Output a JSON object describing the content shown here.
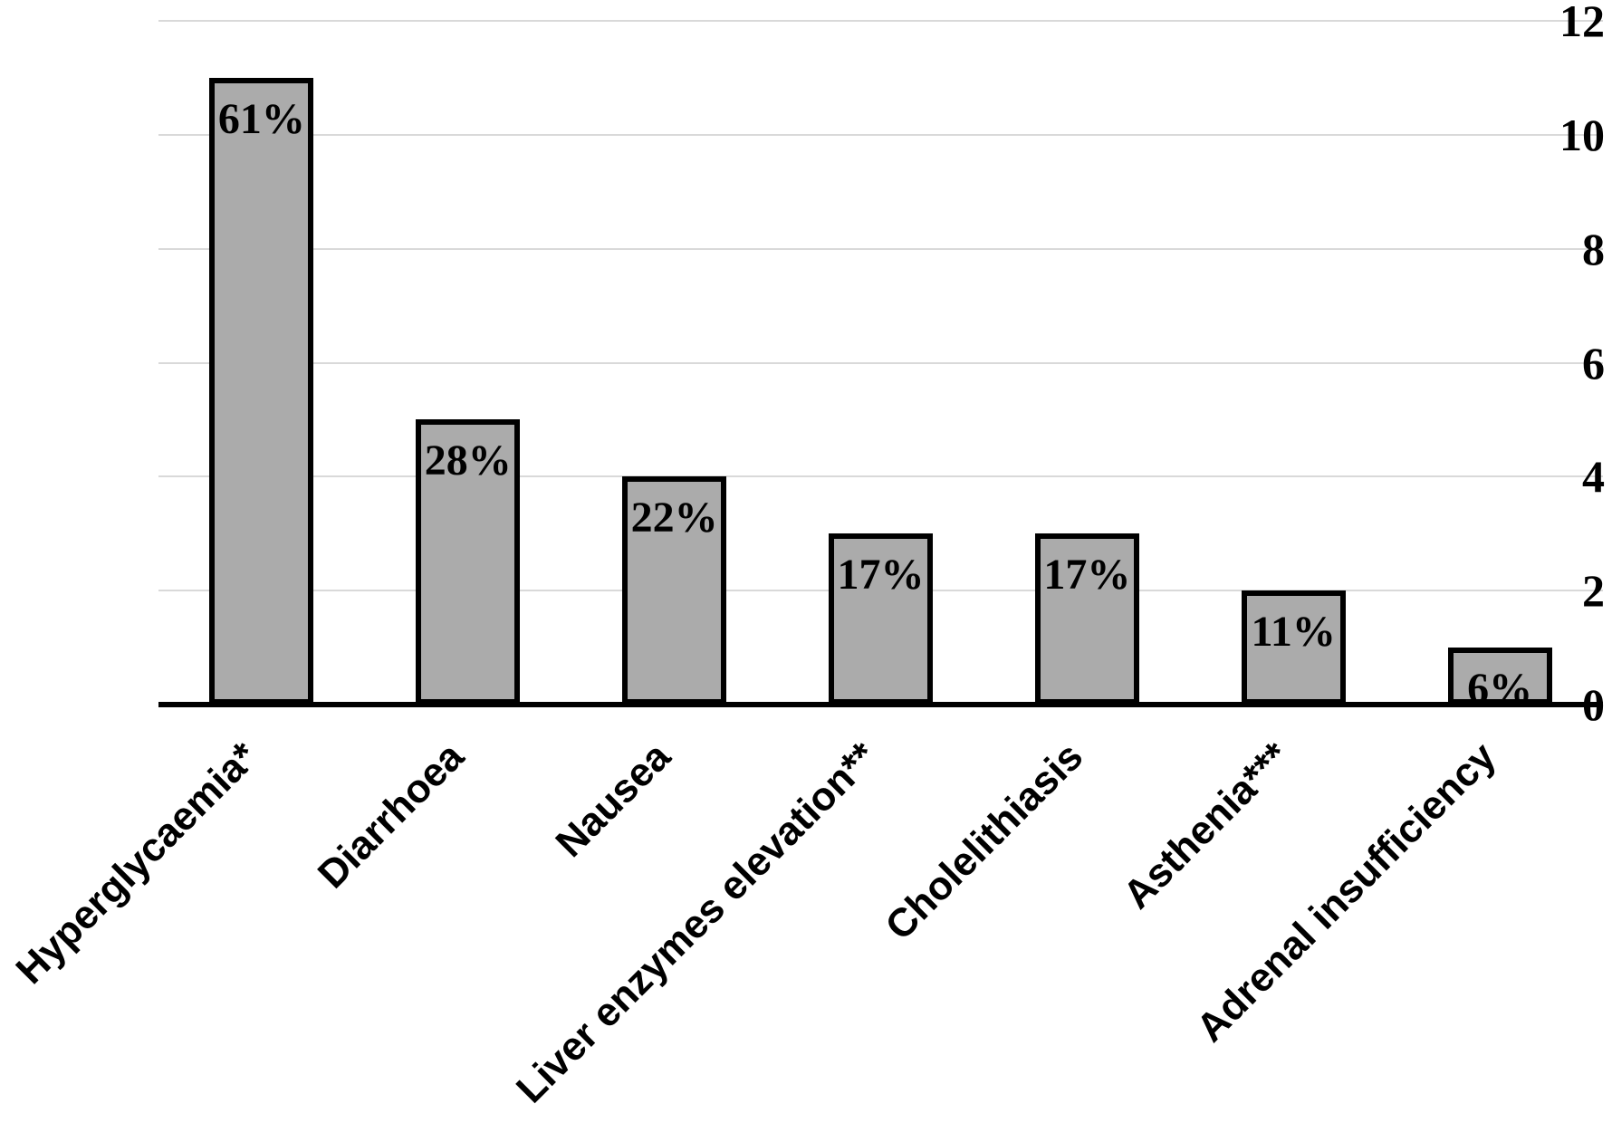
{
  "chart_data": {
    "type": "bar",
    "title": "",
    "xlabel": "",
    "ylabel": "",
    "categories": [
      "Hyperglycaemia*",
      "Diarrhoea",
      "Nausea",
      "Liver enzymes elevation**",
      "Cholelithiasis",
      "Asthenia***",
      "Adrenal insufficiency"
    ],
    "values": [
      11,
      5,
      4,
      3,
      3,
      2,
      1
    ],
    "bar_labels": [
      "61%",
      "28%",
      "22%",
      "17%",
      "17%",
      "11%",
      "6%"
    ],
    "ylim": [
      0,
      12
    ],
    "y_ticks": [
      0,
      2,
      4,
      6,
      8,
      10,
      12
    ],
    "grid": "horizontal-only",
    "legend": "none",
    "x_label_rotation_deg": 45,
    "colors": {
      "bar_fill": "#ABABAB",
      "bar_border": "#000000",
      "gridline": "#D9D9D9",
      "axis_line": "#000000",
      "text": "#000000",
      "background": "#FFFFFF"
    }
  }
}
